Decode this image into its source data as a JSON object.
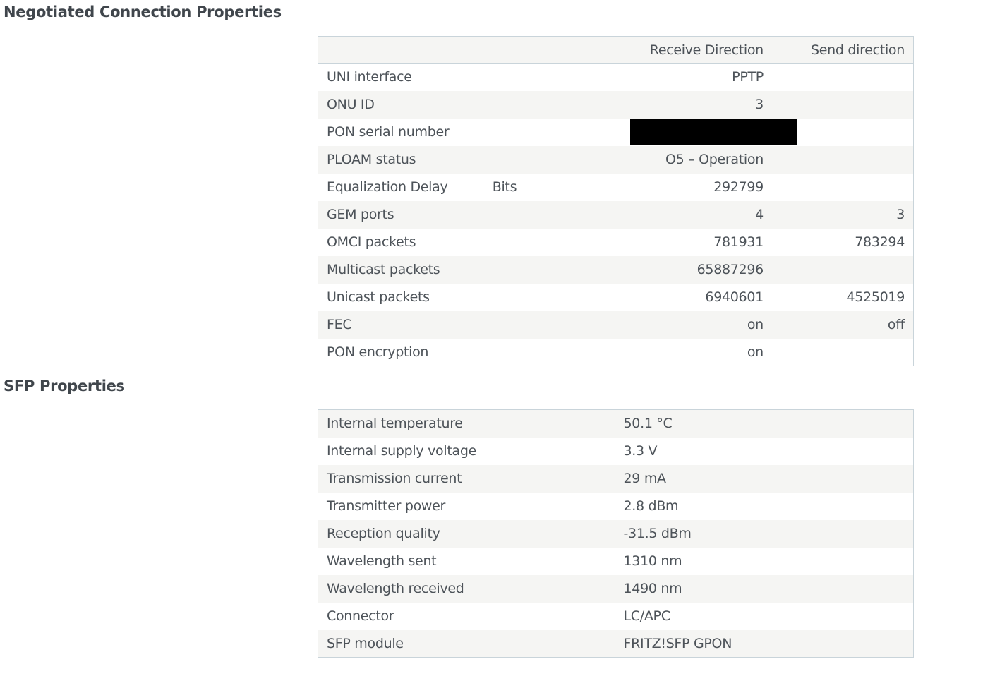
{
  "negotiated": {
    "title": "Negotiated Connection Properties",
    "headers": {
      "receive": "Receive Direction",
      "send": "Send direction"
    },
    "rows": [
      {
        "label": "UNI interface",
        "unit": "",
        "receive": "PPTP",
        "send": ""
      },
      {
        "label": "ONU ID",
        "unit": "",
        "receive": "3",
        "send": ""
      },
      {
        "label": "PON serial number",
        "unit": "",
        "receive": "",
        "send": "",
        "redacted": true
      },
      {
        "label": "PLOAM status",
        "unit": "",
        "receive": "O5 – Operation",
        "send": ""
      },
      {
        "label": "Equalization Delay",
        "unit": "Bits",
        "receive": "292799",
        "send": ""
      },
      {
        "label": "GEM ports",
        "unit": "",
        "receive": "4",
        "send": "3"
      },
      {
        "label": "OMCI packets",
        "unit": "",
        "receive": "781931",
        "send": "783294"
      },
      {
        "label": "Multicast packets",
        "unit": "",
        "receive": "65887296",
        "send": ""
      },
      {
        "label": "Unicast packets",
        "unit": "",
        "receive": "6940601",
        "send": "4525019"
      },
      {
        "label": "FEC",
        "unit": "",
        "receive": "on",
        "send": "off"
      },
      {
        "label": "PON encryption",
        "unit": "",
        "receive": "on",
        "send": ""
      }
    ]
  },
  "sfp": {
    "title": "SFP Properties",
    "rows": [
      {
        "label": "Internal temperature",
        "value": "50.1 °C"
      },
      {
        "label": "Internal supply voltage",
        "value": "3.3 V"
      },
      {
        "label": "Transmission current",
        "value": "29 mA"
      },
      {
        "label": "Transmitter power",
        "value": "2.8 dBm"
      },
      {
        "label": "Reception quality",
        "value": "-31.5 dBm"
      },
      {
        "label": "Wavelength sent",
        "value": "1310 nm"
      },
      {
        "label": "Wavelength received",
        "value": "1490 nm"
      },
      {
        "label": "Connector",
        "value": "LC/APC"
      },
      {
        "label": "SFP module",
        "value": "FRITZ!SFP GPON"
      }
    ]
  }
}
